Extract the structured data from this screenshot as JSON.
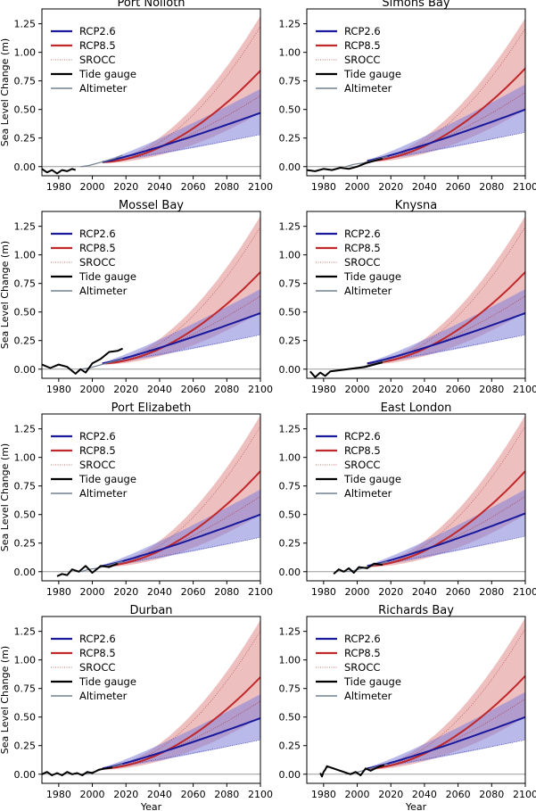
{
  "figure": {
    "ylabel": "Sea Level Change (m)",
    "xlabel": "Year",
    "xlim": [
      1970,
      2100
    ],
    "ylim": [
      -0.08,
      1.38
    ],
    "xticks": [
      1980,
      2000,
      2020,
      2040,
      2060,
      2080,
      2100
    ],
    "yticks": [
      0.0,
      0.25,
      0.5,
      0.75,
      1.0,
      1.25
    ],
    "ytick_labels": [
      "0.00",
      "0.25",
      "0.50",
      "0.75",
      "1.00",
      "1.25"
    ],
    "legend": [
      "RCP2.6",
      "RCP8.5",
      "SROCC",
      "Tide gauge",
      "Altimeter"
    ],
    "colors": {
      "rcp26": "#1a1a9c",
      "rcp85": "#c0282b",
      "rcp26_band": "#8080d8",
      "rcp85_band": "#e08a8a",
      "srocc": "#b04040",
      "tide": "#000000",
      "altimeter": "#708090",
      "zero": "#999999"
    }
  },
  "chart_data": [
    {
      "type": "line",
      "title": "Port Nolloth",
      "xlabel": "",
      "ylabel": "Sea Level Change (m)",
      "xlim": [
        1970,
        2100
      ],
      "ylim": [
        -0.08,
        1.38
      ],
      "series": [
        {
          "name": "RCP2.6",
          "x": [
            2006,
            2100
          ],
          "values": [
            0.04,
            0.47
          ],
          "band_lo": [
            0.03,
            0.28
          ],
          "band_hi": [
            0.05,
            0.68
          ]
        },
        {
          "name": "RCP8.5",
          "x": [
            2006,
            2100
          ],
          "values": [
            0.04,
            0.84
          ],
          "band_lo": [
            0.03,
            0.47
          ],
          "band_hi": [
            0.05,
            1.32
          ]
        },
        {
          "name": "SROCC",
          "x": [
            2006,
            2100
          ],
          "values": [
            0.04,
            0.62
          ]
        },
        {
          "name": "Tide gauge",
          "x": [
            1970,
            1973,
            1976,
            1979,
            1982,
            1985,
            1988,
            1990
          ],
          "values": [
            -0.02,
            -0.05,
            -0.03,
            -0.06,
            -0.03,
            -0.04,
            -0.02,
            -0.03
          ]
        },
        {
          "name": "Altimeter",
          "x": [
            1993,
            1998,
            2003,
            2008,
            2013,
            2018
          ],
          "values": [
            0.0,
            0.01,
            0.03,
            0.05,
            0.07,
            0.1
          ]
        }
      ]
    },
    {
      "type": "line",
      "title": "Simons Bay",
      "xlabel": "",
      "ylabel": "",
      "xlim": [
        1970,
        2100
      ],
      "ylim": [
        -0.08,
        1.38
      ],
      "series": [
        {
          "name": "RCP2.6",
          "x": [
            2006,
            2100
          ],
          "values": [
            0.05,
            0.5
          ],
          "band_lo": [
            0.04,
            0.3
          ],
          "band_hi": [
            0.06,
            0.72
          ]
        },
        {
          "name": "RCP8.5",
          "x": [
            2006,
            2100
          ],
          "values": [
            0.05,
            0.86
          ],
          "band_lo": [
            0.04,
            0.5
          ],
          "band_hi": [
            0.06,
            1.3
          ]
        },
        {
          "name": "SROCC",
          "x": [
            2006,
            2100
          ],
          "values": [
            0.05,
            0.65
          ]
        },
        {
          "name": "Tide gauge",
          "x": [
            1970,
            1975,
            1980,
            1985,
            1990,
            1995,
            2000,
            2005,
            2010,
            2015
          ],
          "values": [
            -0.03,
            -0.04,
            -0.02,
            -0.03,
            -0.01,
            -0.02,
            0.0,
            0.03,
            0.05,
            0.07
          ]
        },
        {
          "name": "Altimeter",
          "x": [
            1993,
            1998,
            2003,
            2008,
            2013,
            2018
          ],
          "values": [
            0.0,
            0.02,
            0.03,
            0.05,
            0.07,
            0.09
          ]
        }
      ]
    },
    {
      "type": "line",
      "title": "Mossel Bay",
      "xlabel": "",
      "ylabel": "Sea Level Change (m)",
      "xlim": [
        1970,
        2100
      ],
      "ylim": [
        -0.08,
        1.38
      ],
      "series": [
        {
          "name": "RCP2.6",
          "x": [
            2006,
            2100
          ],
          "values": [
            0.05,
            0.49
          ],
          "band_lo": [
            0.04,
            0.3
          ],
          "band_hi": [
            0.06,
            0.7
          ]
        },
        {
          "name": "RCP8.5",
          "x": [
            2006,
            2100
          ],
          "values": [
            0.05,
            0.85
          ],
          "band_lo": [
            0.04,
            0.5
          ],
          "band_hi": [
            0.06,
            1.34
          ]
        },
        {
          "name": "SROCC",
          "x": [
            2006,
            2100
          ],
          "values": [
            0.05,
            0.64
          ]
        },
        {
          "name": "Tide gauge",
          "x": [
            1970,
            1975,
            1980,
            1985,
            1990,
            1993,
            1996,
            2000,
            2005,
            2010,
            2015,
            2018
          ],
          "values": [
            0.04,
            0.01,
            0.04,
            0.02,
            -0.04,
            0.0,
            -0.03,
            0.05,
            0.09,
            0.15,
            0.16,
            0.18
          ]
        },
        {
          "name": "Altimeter",
          "x": [
            1993,
            1998,
            2003,
            2008,
            2013,
            2018
          ],
          "values": [
            0.0,
            0.01,
            0.03,
            0.05,
            0.07,
            0.09
          ]
        }
      ]
    },
    {
      "type": "line",
      "title": "Knysna",
      "xlabel": "",
      "ylabel": "",
      "xlim": [
        1970,
        2100
      ],
      "ylim": [
        -0.08,
        1.38
      ],
      "series": [
        {
          "name": "RCP2.6",
          "x": [
            2006,
            2100
          ],
          "values": [
            0.05,
            0.49
          ],
          "band_lo": [
            0.04,
            0.3
          ],
          "band_hi": [
            0.06,
            0.7
          ]
        },
        {
          "name": "RCP8.5",
          "x": [
            2006,
            2100
          ],
          "values": [
            0.05,
            0.85
          ],
          "band_lo": [
            0.04,
            0.5
          ],
          "band_hi": [
            0.06,
            1.34
          ]
        },
        {
          "name": "SROCC",
          "x": [
            2006,
            2100
          ],
          "values": [
            0.05,
            0.64
          ]
        },
        {
          "name": "Tide gauge",
          "x": [
            1972,
            1975,
            1978,
            1981,
            1984,
            2005,
            2010,
            2015
          ],
          "values": [
            -0.02,
            -0.07,
            -0.03,
            -0.06,
            -0.02,
            0.02,
            0.04,
            0.06
          ]
        },
        {
          "name": "Altimeter",
          "x": [
            1993,
            1998,
            2003,
            2008,
            2013,
            2018
          ],
          "values": [
            0.0,
            0.01,
            0.02,
            0.04,
            0.06,
            0.08
          ]
        }
      ]
    },
    {
      "type": "line",
      "title": "Port Elizabeth",
      "xlabel": "",
      "ylabel": "Sea Level Change (m)",
      "xlim": [
        1970,
        2100
      ],
      "ylim": [
        -0.08,
        1.38
      ],
      "series": [
        {
          "name": "RCP2.6",
          "x": [
            2006,
            2100
          ],
          "values": [
            0.05,
            0.5
          ],
          "band_lo": [
            0.04,
            0.3
          ],
          "band_hi": [
            0.06,
            0.72
          ]
        },
        {
          "name": "RCP8.5",
          "x": [
            2006,
            2100
          ],
          "values": [
            0.05,
            0.88
          ],
          "band_lo": [
            0.04,
            0.5
          ],
          "band_hi": [
            0.06,
            1.37
          ]
        },
        {
          "name": "SROCC",
          "x": [
            2006,
            2100
          ],
          "values": [
            0.05,
            0.66
          ]
        },
        {
          "name": "Tide gauge",
          "x": [
            1979,
            1982,
            1985,
            1988,
            1992,
            1996,
            2000,
            2005,
            2010,
            2015
          ],
          "values": [
            -0.04,
            -0.02,
            -0.03,
            0.02,
            0.0,
            0.05,
            -0.01,
            0.05,
            0.04,
            0.07
          ]
        },
        {
          "name": "Altimeter",
          "x": [
            1993,
            1998,
            2003,
            2008,
            2013,
            2018
          ],
          "values": [
            0.0,
            0.02,
            0.03,
            0.05,
            0.07,
            0.09
          ]
        }
      ]
    },
    {
      "type": "line",
      "title": "East London",
      "xlabel": "",
      "ylabel": "",
      "xlim": [
        1970,
        2100
      ],
      "ylim": [
        -0.08,
        1.38
      ],
      "series": [
        {
          "name": "RCP2.6",
          "x": [
            2006,
            2100
          ],
          "values": [
            0.05,
            0.51
          ],
          "band_lo": [
            0.04,
            0.31
          ],
          "band_hi": [
            0.06,
            0.72
          ]
        },
        {
          "name": "RCP8.5",
          "x": [
            2006,
            2100
          ],
          "values": [
            0.05,
            0.88
          ],
          "band_lo": [
            0.04,
            0.5
          ],
          "band_hi": [
            0.06,
            1.37
          ]
        },
        {
          "name": "SROCC",
          "x": [
            2006,
            2100
          ],
          "values": [
            0.05,
            0.66
          ]
        },
        {
          "name": "Tide gauge",
          "x": [
            1986,
            1989,
            1992,
            1995,
            1998,
            2001,
            2006,
            2010,
            2015
          ],
          "values": [
            -0.02,
            0.02,
            0.0,
            0.03,
            -0.01,
            0.04,
            0.03,
            0.07,
            0.06
          ]
        },
        {
          "name": "Altimeter",
          "x": [
            1993,
            1998,
            2003,
            2008,
            2013,
            2018
          ],
          "values": [
            0.0,
            0.01,
            0.03,
            0.05,
            0.07,
            0.09
          ]
        }
      ]
    },
    {
      "type": "line",
      "title": "Durban",
      "xlabel": "Year",
      "ylabel": "Sea Level Change (m)",
      "xlim": [
        1970,
        2100
      ],
      "ylim": [
        -0.08,
        1.38
      ],
      "series": [
        {
          "name": "RCP2.6",
          "x": [
            2006,
            2100
          ],
          "values": [
            0.05,
            0.49
          ],
          "band_lo": [
            0.04,
            0.3
          ],
          "band_hi": [
            0.06,
            0.7
          ]
        },
        {
          "name": "RCP8.5",
          "x": [
            2006,
            2100
          ],
          "values": [
            0.05,
            0.85
          ],
          "band_lo": [
            0.04,
            0.5
          ],
          "band_hi": [
            0.06,
            1.35
          ]
        },
        {
          "name": "SROCC",
          "x": [
            2006,
            2100
          ],
          "values": [
            0.05,
            0.64
          ]
        },
        {
          "name": "Tide gauge",
          "x": [
            1970,
            1973,
            1976,
            1979,
            1982,
            1985,
            1988,
            1991,
            1994,
            1997,
            2000,
            2004,
            2008,
            2012
          ],
          "values": [
            0.0,
            0.02,
            -0.01,
            0.01,
            -0.01,
            0.02,
            0.0,
            0.01,
            -0.01,
            0.02,
            0.01,
            0.04,
            0.05,
            0.06
          ]
        },
        {
          "name": "Altimeter",
          "x": [
            1993,
            1998,
            2003,
            2008,
            2013,
            2018
          ],
          "values": [
            0.0,
            0.01,
            0.03,
            0.05,
            0.07,
            0.09
          ]
        }
      ]
    },
    {
      "type": "line",
      "title": "Richards Bay",
      "xlabel": "Year",
      "ylabel": "",
      "xlim": [
        1970,
        2100
      ],
      "ylim": [
        -0.08,
        1.38
      ],
      "series": [
        {
          "name": "RCP2.6",
          "x": [
            2006,
            2100
          ],
          "values": [
            0.05,
            0.5
          ],
          "band_lo": [
            0.04,
            0.3
          ],
          "band_hi": [
            0.06,
            0.72
          ]
        },
        {
          "name": "RCP8.5",
          "x": [
            2006,
            2100
          ],
          "values": [
            0.05,
            0.86
          ],
          "band_lo": [
            0.04,
            0.5
          ],
          "band_hi": [
            0.06,
            1.37
          ]
        },
        {
          "name": "SROCC",
          "x": [
            2006,
            2100
          ],
          "values": [
            0.05,
            0.66
          ]
        },
        {
          "name": "Tide gauge",
          "x": [
            1978,
            1979,
            1980,
            1981,
            1982,
            1996,
            1999,
            2002,
            2005,
            2008,
            2012,
            2016
          ],
          "values": [
            0.01,
            -0.02,
            0.02,
            0.04,
            0.07,
            0.0,
            0.02,
            -0.01,
            0.05,
            0.03,
            0.06,
            0.08
          ]
        },
        {
          "name": "Altimeter",
          "x": [
            1993,
            1998,
            2003,
            2008,
            2013,
            2018
          ],
          "values": [
            0.0,
            0.01,
            0.03,
            0.05,
            0.07,
            0.09
          ]
        }
      ]
    }
  ]
}
